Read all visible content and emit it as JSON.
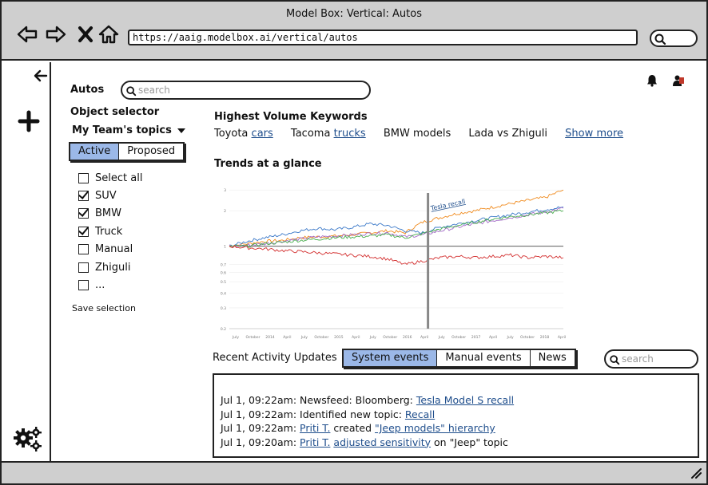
{
  "window": {
    "title": "Model Box: Vertical: Autos",
    "url": "https://aaig.modelbox.ai/vertical/autos"
  },
  "header": {
    "page_label": "Autos",
    "search_placeholder": "search"
  },
  "object_selector": {
    "heading": "Object selector",
    "team_dropdown": "My Team's topics",
    "tabs": [
      {
        "label": "Active",
        "active": true
      },
      {
        "label": "Proposed",
        "active": false
      }
    ],
    "items": [
      {
        "label": "Select all",
        "checked": false
      },
      {
        "label": "SUV",
        "checked": true
      },
      {
        "label": "BMW",
        "checked": true
      },
      {
        "label": "Truck",
        "checked": true
      },
      {
        "label": "Manual",
        "checked": false
      },
      {
        "label": "Zhiguli",
        "checked": false
      },
      {
        "label": "...",
        "checked": false
      }
    ],
    "save_label": "Save selection"
  },
  "keywords": {
    "heading": "Highest Volume Keywords",
    "items": [
      {
        "prefix": "Toyota",
        "link": "cars"
      },
      {
        "prefix": "Tacoma",
        "link": "trucks"
      },
      {
        "prefix": "BMW models",
        "link": ""
      },
      {
        "prefix": "Lada vs Zhiguli",
        "link": ""
      }
    ],
    "show_more": "Show more"
  },
  "trends": {
    "heading": "Trends at a glance"
  },
  "chart_data": {
    "type": "line",
    "title": "",
    "annotation": "Tesla recall",
    "x_ticks": [
      "July",
      "October",
      "2014",
      "April",
      "July",
      "October",
      "2015",
      "April",
      "July",
      "October",
      "2016",
      "April",
      "July",
      "October",
      "2017",
      "April",
      "July",
      "October",
      "2018",
      "April"
    ],
    "y_ticks": [
      "3",
      "2",
      "1",
      "0.7",
      "0.6",
      "0.5",
      "0.4",
      "0.3",
      "0.2"
    ],
    "baseline": 1,
    "ylim": [
      0.2,
      3.2
    ],
    "x": [
      0,
      1,
      2,
      3,
      4,
      5,
      6,
      7,
      8,
      9,
      10,
      11,
      12,
      13,
      14,
      15,
      16,
      17,
      18,
      19
    ],
    "series": [
      {
        "color": "#f08a1c",
        "values": [
          1.0,
          1.05,
          1.1,
          1.12,
          1.18,
          1.2,
          1.22,
          1.25,
          1.3,
          1.35,
          1.3,
          1.6,
          1.75,
          1.9,
          2.0,
          2.15,
          2.3,
          2.45,
          2.6,
          3.0
        ]
      },
      {
        "color": "#3a78c8",
        "values": [
          1.0,
          1.1,
          1.18,
          1.25,
          1.35,
          1.42,
          1.38,
          1.45,
          1.55,
          1.5,
          1.35,
          1.3,
          1.45,
          1.55,
          1.65,
          1.75,
          1.85,
          1.95,
          2.05,
          2.15
        ]
      },
      {
        "color": "#a46cc8",
        "values": [
          1.0,
          1.02,
          1.05,
          1.1,
          1.15,
          1.2,
          1.22,
          1.25,
          1.28,
          1.3,
          1.2,
          1.25,
          1.35,
          1.45,
          1.55,
          1.65,
          1.75,
          1.85,
          1.95,
          2.1
        ]
      },
      {
        "color": "#4caf50",
        "values": [
          1.0,
          1.0,
          1.05,
          1.08,
          1.12,
          1.15,
          1.18,
          1.2,
          1.22,
          1.25,
          1.18,
          1.28,
          1.4,
          1.5,
          1.6,
          1.7,
          1.78,
          1.85,
          1.92,
          2.0
        ]
      },
      {
        "color": "#d32f2f",
        "values": [
          1.0,
          0.97,
          0.95,
          0.92,
          0.9,
          0.88,
          0.86,
          0.84,
          0.82,
          0.78,
          0.7,
          0.75,
          0.8,
          0.82,
          0.8,
          0.82,
          0.84,
          0.8,
          0.82,
          0.8
        ]
      }
    ]
  },
  "activity": {
    "heading": "Recent Activity Updates",
    "tabs": [
      {
        "label": "System events",
        "active": true
      },
      {
        "label": "Manual events",
        "active": false
      },
      {
        "label": "News",
        "active": false
      }
    ],
    "search_placeholder": "search",
    "lines": [
      {
        "time": "Jul 1, 09:22am:",
        "parts": [
          {
            "t": " Newsfeed: Bloomberg: "
          },
          {
            "t": "Tesla Model S recall",
            "link": true
          }
        ]
      },
      {
        "time": "Jul 1, 09:22am:",
        "parts": [
          {
            "t": " Identified new topic: "
          },
          {
            "t": "Recall",
            "link": true
          }
        ]
      },
      {
        "time": "Jul 1, 09:22am:",
        "parts": [
          {
            "t": " "
          },
          {
            "t": "Priti T.",
            "link": true
          },
          {
            "t": " created "
          },
          {
            "t": "\"Jeep models\" hierarchy",
            "link": true
          }
        ]
      },
      {
        "time": "Jul 1, 09:20am:",
        "parts": [
          {
            "t": " "
          },
          {
            "t": "Priti T.",
            "link": true
          },
          {
            "t": " "
          },
          {
            "t": "adjusted sensitivity",
            "link": true
          },
          {
            "t": " on \"Jeep\" topic"
          }
        ]
      }
    ]
  }
}
